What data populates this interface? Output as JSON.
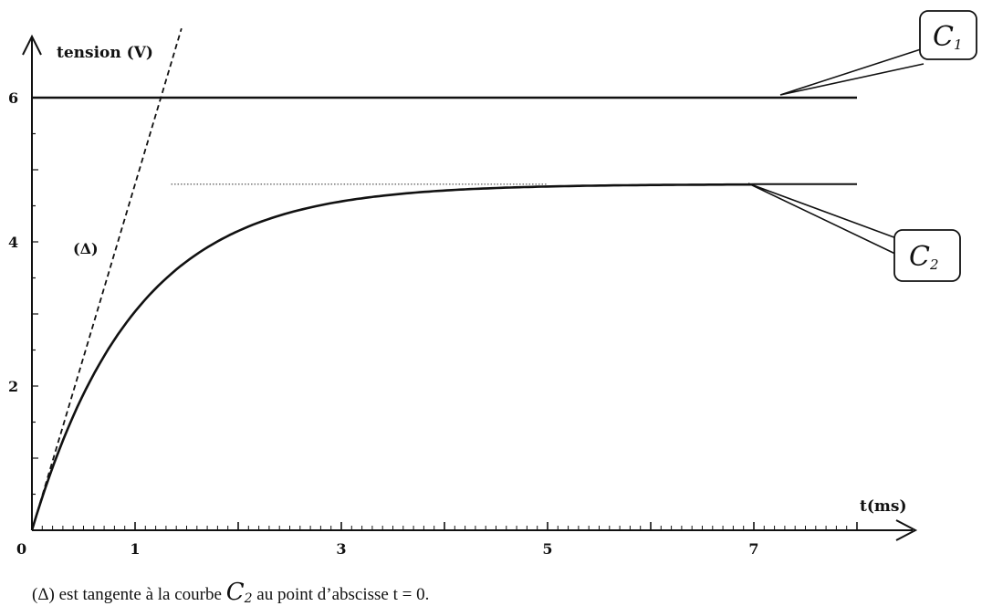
{
  "chart_data": {
    "type": "line",
    "xlabel": "t(ms)",
    "ylabel": "tension (V)",
    "xlim": [
      0,
      8
    ],
    "ylim": [
      0,
      6.2
    ],
    "x_ticks": [
      {
        "value": 0,
        "label": "0"
      },
      {
        "value": 1,
        "label": "1"
      },
      {
        "value": 3,
        "label": "3"
      },
      {
        "value": 5,
        "label": "5"
      },
      {
        "value": 7,
        "label": "7"
      }
    ],
    "y_ticks": [
      {
        "value": 2,
        "label": "2"
      },
      {
        "value": 4,
        "label": "4"
      },
      {
        "value": 6,
        "label": "6"
      }
    ],
    "grid": false,
    "series": [
      {
        "name": "C1",
        "shape": "constant",
        "x": [
          0,
          8
        ],
        "y": [
          6,
          6
        ],
        "color": "#111111"
      },
      {
        "name": "C2",
        "shape": "exponential-rise",
        "asymptote": 4.8,
        "tau_ms": 1,
        "x_range": [
          0,
          8
        ],
        "color": "#111111"
      },
      {
        "name": "(Δ)",
        "shape": "tangent-at-origin",
        "slope_v_per_ms": 4.8,
        "x": [
          0,
          1.45
        ],
        "y": [
          0,
          6.96
        ],
        "dashed": true,
        "color": "#111111"
      },
      {
        "name": "asymptote",
        "shape": "dotted",
        "x": [
          1.35,
          5.0
        ],
        "y": [
          4.8,
          4.8
        ],
        "dotted": true,
        "color": "#555555"
      }
    ],
    "callouts": [
      {
        "series": "C1",
        "label": "C",
        "subscript": "1"
      },
      {
        "series": "C2",
        "label": "C",
        "subscript": "2"
      }
    ],
    "caption": {
      "before": "(Δ) est tangente à la courbe ",
      "curve": "C",
      "curve_subscript": "2",
      "after": " au point d’abscisse t = 0."
    }
  }
}
